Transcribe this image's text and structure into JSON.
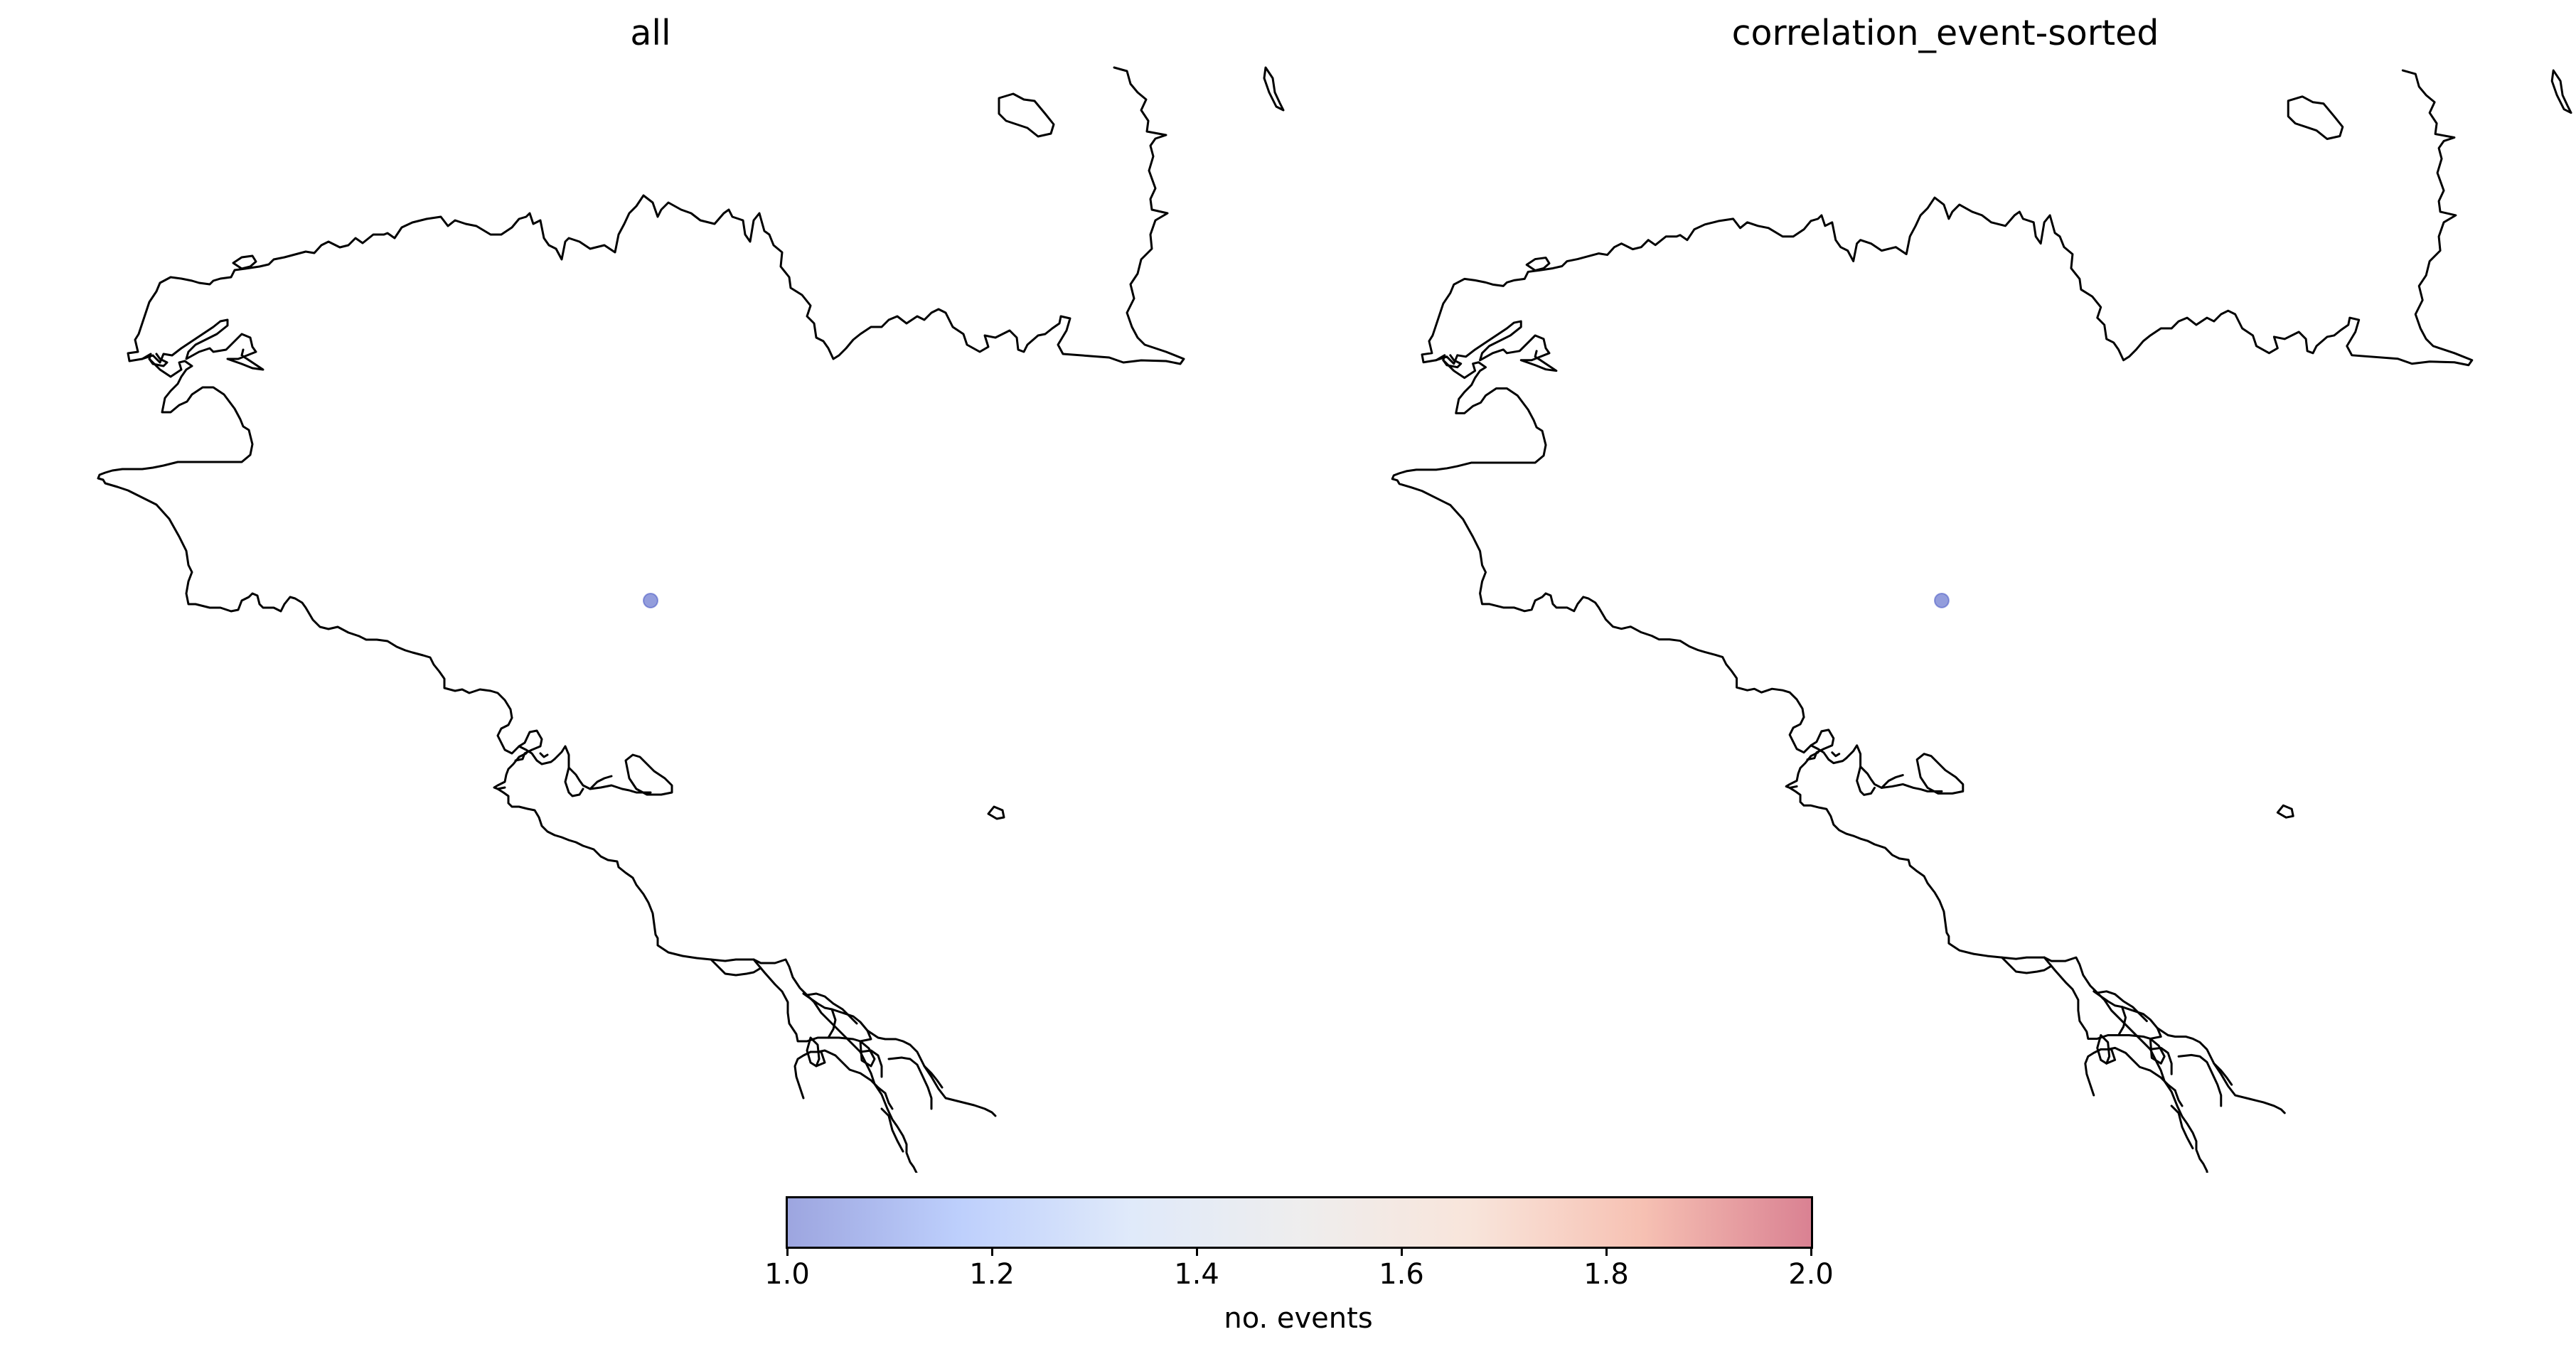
{
  "panels": [
    {
      "title": "all"
    },
    {
      "title": "correlation_event-sorted"
    }
  ],
  "events": [
    {
      "value": 1.0
    }
  ],
  "colorbar": {
    "label": "no. events",
    "min": 1.0,
    "max": 2.0,
    "ticks": [
      "1.0",
      "1.2",
      "1.4",
      "1.6",
      "1.8",
      "2.0"
    ],
    "colormap": "coolwarm",
    "stops": [
      "#3b4cc0",
      "#7b9ff9",
      "#c0d4f5",
      "#dddcdc",
      "#f2cbb7",
      "#ee8468",
      "#b40426"
    ],
    "opacity": 0.5
  },
  "colors": {
    "coastline": "#000000",
    "background": "#ffffff"
  }
}
